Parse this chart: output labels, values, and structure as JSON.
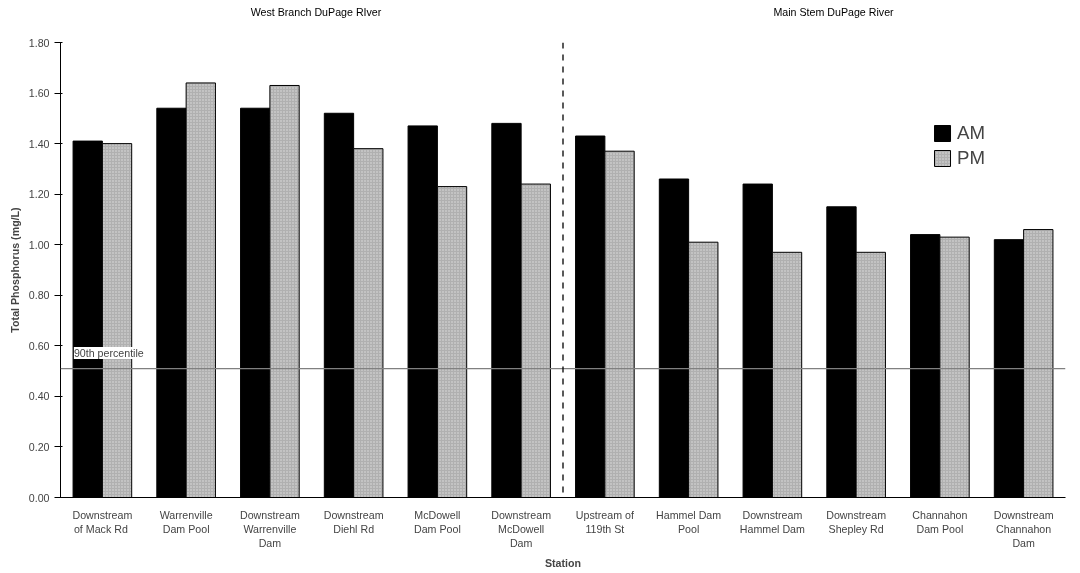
{
  "chart_data": {
    "type": "bar",
    "xlabel": "Station",
    "ylabel": "Total Phosphorus (mg/L)",
    "categories": [
      "Downstream\nof  Mack Rd",
      "Warrenville\nDam Pool",
      "Downstream\nWarrenville\nDam",
      "Downstream\nDiehl Rd",
      "McDowell\nDam Pool",
      "Downstream\nMcDowell\nDam",
      "Upstream of\n119th St",
      "Hammel Dam\nPool",
      "Downstream\nHammel Dam",
      "Downstream\nShepley Rd",
      "Channahon\nDam Pool",
      "Downstream\nChannahon\nDam"
    ],
    "series": [
      {
        "name": "AM",
        "color": "#000000",
        "values": [
          1.41,
          1.54,
          1.54,
          1.52,
          1.47,
          1.48,
          1.43,
          1.26,
          1.24,
          1.15,
          1.04,
          1.02
        ]
      },
      {
        "name": "PM",
        "color": "#b0b0b0",
        "values": [
          1.4,
          1.64,
          1.63,
          1.38,
          1.23,
          1.24,
          1.37,
          1.01,
          0.97,
          0.97,
          1.03,
          1.06
        ]
      }
    ],
    "ylim": [
      0,
      1.8
    ],
    "yticks": [
      {
        "value": 0,
        "label": "0.00"
      },
      {
        "value": 0.2,
        "label": "0.20"
      },
      {
        "value": 0.4,
        "label": "0.40"
      },
      {
        "value": 0.6,
        "label": "0.60"
      },
      {
        "value": 0.8,
        "label": "0.80"
      },
      {
        "value": 1.0,
        "label": "1.00"
      },
      {
        "value": 1.2,
        "label": "1.20"
      },
      {
        "value": 1.4,
        "label": "1.40"
      },
      {
        "value": 1.6,
        "label": "1.60"
      },
      {
        "value": 1.8,
        "label": "1.80"
      }
    ],
    "ref_lines": [
      {
        "axis": "y",
        "value": 0.51,
        "label": "90th percentile",
        "color": "#808080",
        "line_style": "solid"
      }
    ],
    "annotations": [
      "West Branch DuPage RIver",
      "Main Stem DuPage River"
    ],
    "legend": "right",
    "grid": false
  }
}
